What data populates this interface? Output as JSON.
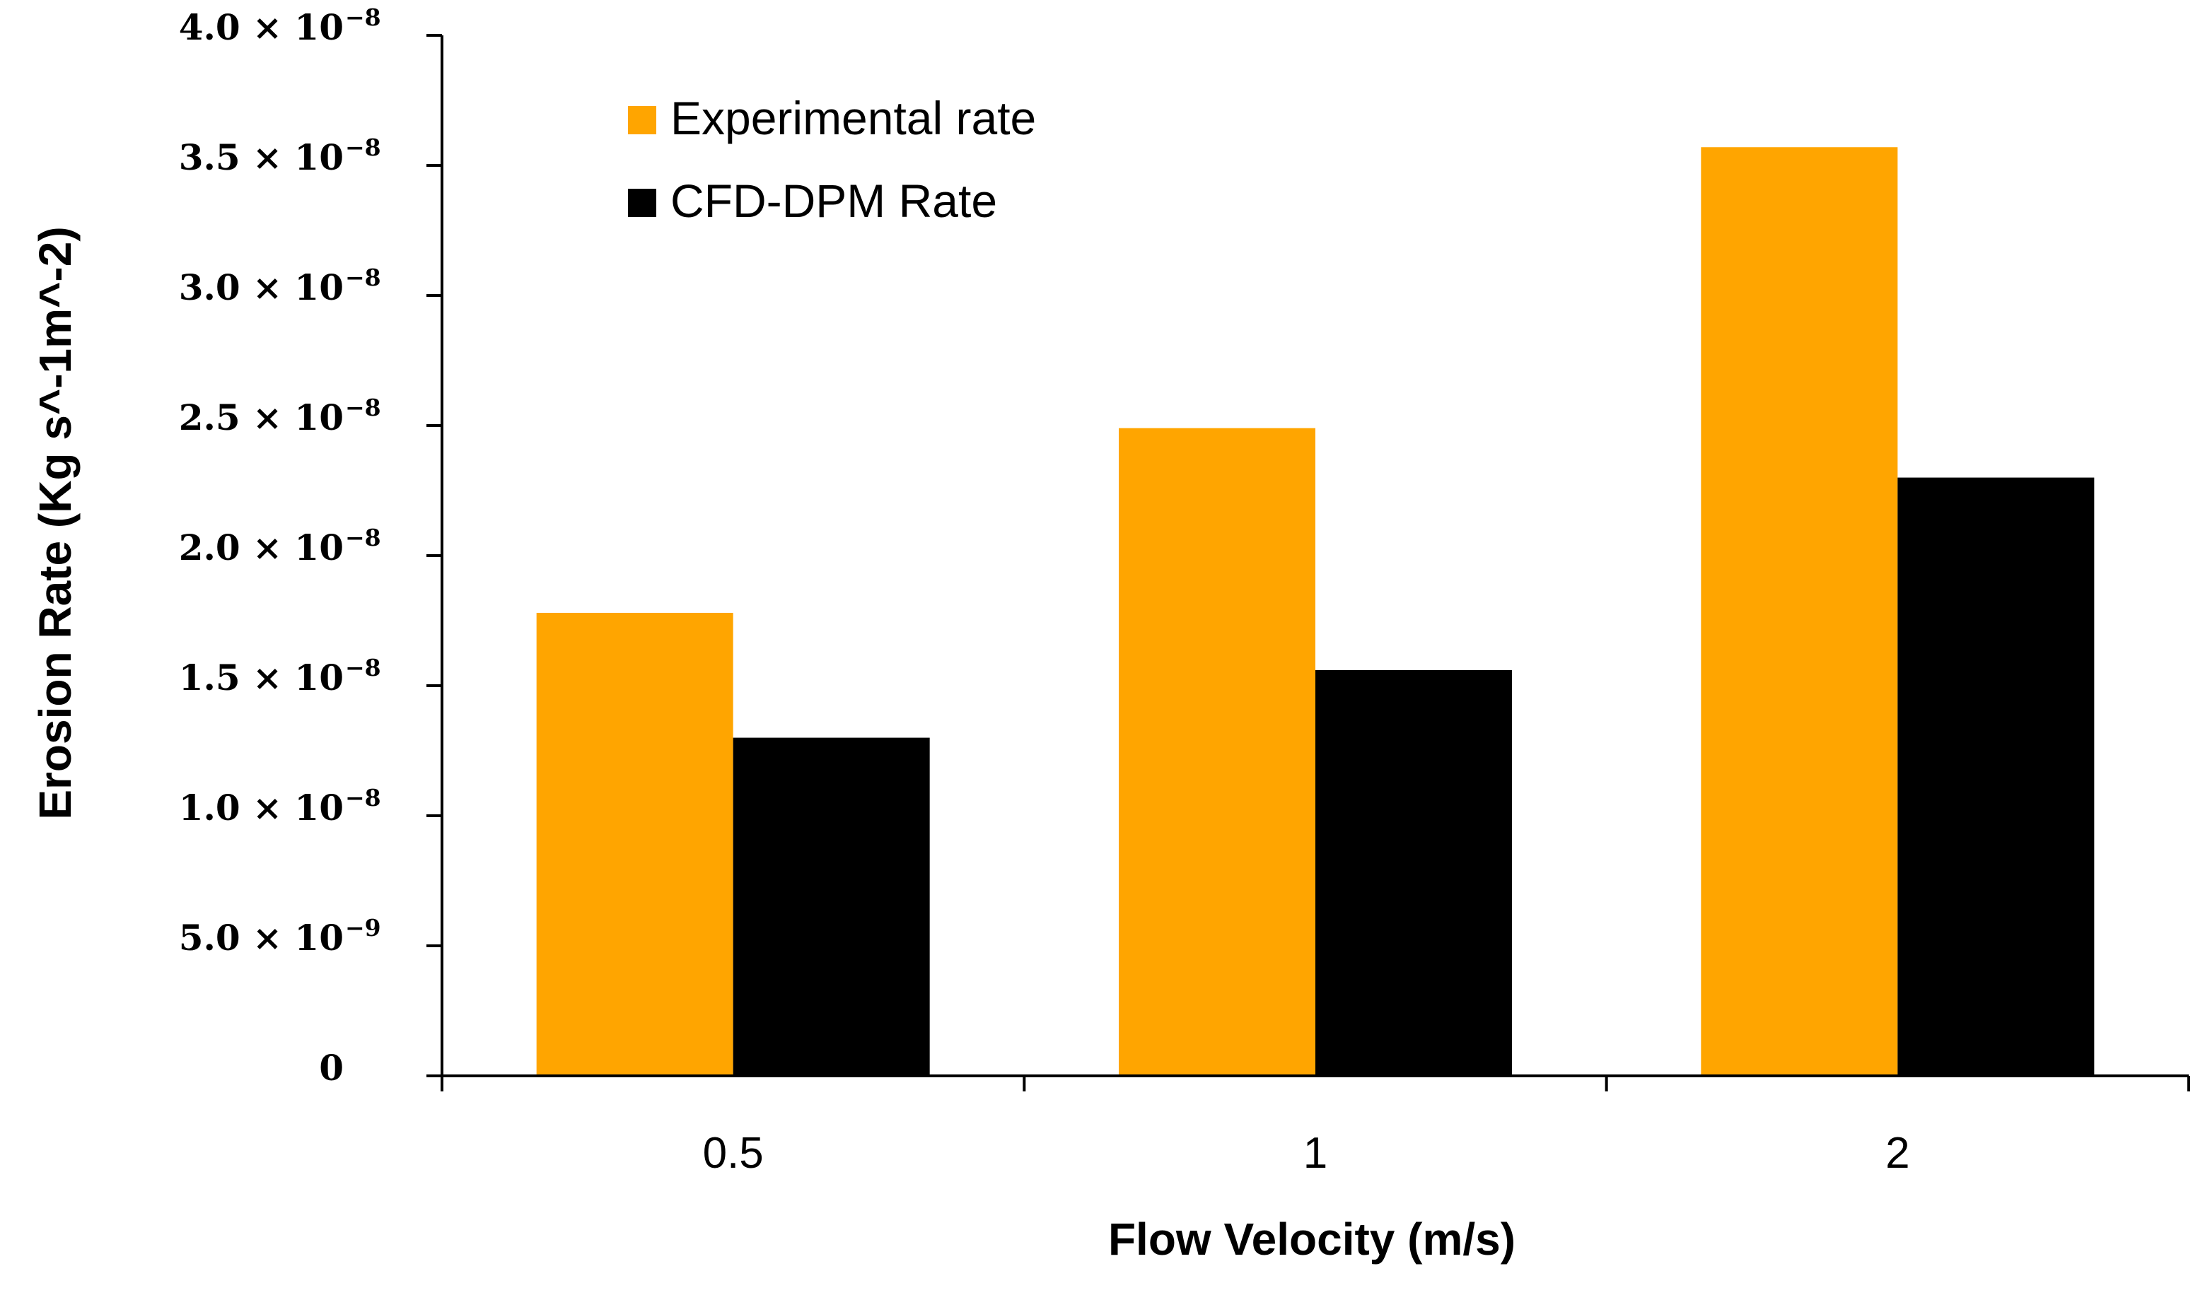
{
  "chart_data": {
    "type": "bar",
    "title": "",
    "xlabel": "Flow Velocity (m/s)",
    "ylabel": "Erosion Rate (Kg s^-1m^-2)",
    "categories": [
      "0.5",
      "1",
      "2"
    ],
    "series": [
      {
        "name": "Experimental rate",
        "color": "#FFA500",
        "values": [
          1.78e-08,
          2.49e-08,
          3.57e-08
        ]
      },
      {
        "name": "CFD-DPM Rate",
        "color": "#000000",
        "values": [
          1.3e-08,
          1.56e-08,
          2.3e-08
        ]
      }
    ],
    "ylim": [
      0,
      4e-08
    ],
    "yticks": [
      {
        "value": 0,
        "mantissa": "0",
        "exponent": ""
      },
      {
        "value": 5e-09,
        "mantissa": "5.0 × 10",
        "exponent": "−9"
      },
      {
        "value": 1e-08,
        "mantissa": "1.0 × 10",
        "exponent": "−8"
      },
      {
        "value": 1.5e-08,
        "mantissa": "1.5 × 10",
        "exponent": "−8"
      },
      {
        "value": 2e-08,
        "mantissa": "2.0 × 10",
        "exponent": "−8"
      },
      {
        "value": 2.5e-08,
        "mantissa": "2.5 × 10",
        "exponent": "−8"
      },
      {
        "value": 3e-08,
        "mantissa": "3.0 × 10",
        "exponent": "−8"
      },
      {
        "value": 3.5e-08,
        "mantissa": "3.5 × 10",
        "exponent": "−8"
      },
      {
        "value": 4e-08,
        "mantissa": "4.0 × 10",
        "exponent": "−8"
      }
    ],
    "grid": false,
    "legend_position": "top-left"
  }
}
